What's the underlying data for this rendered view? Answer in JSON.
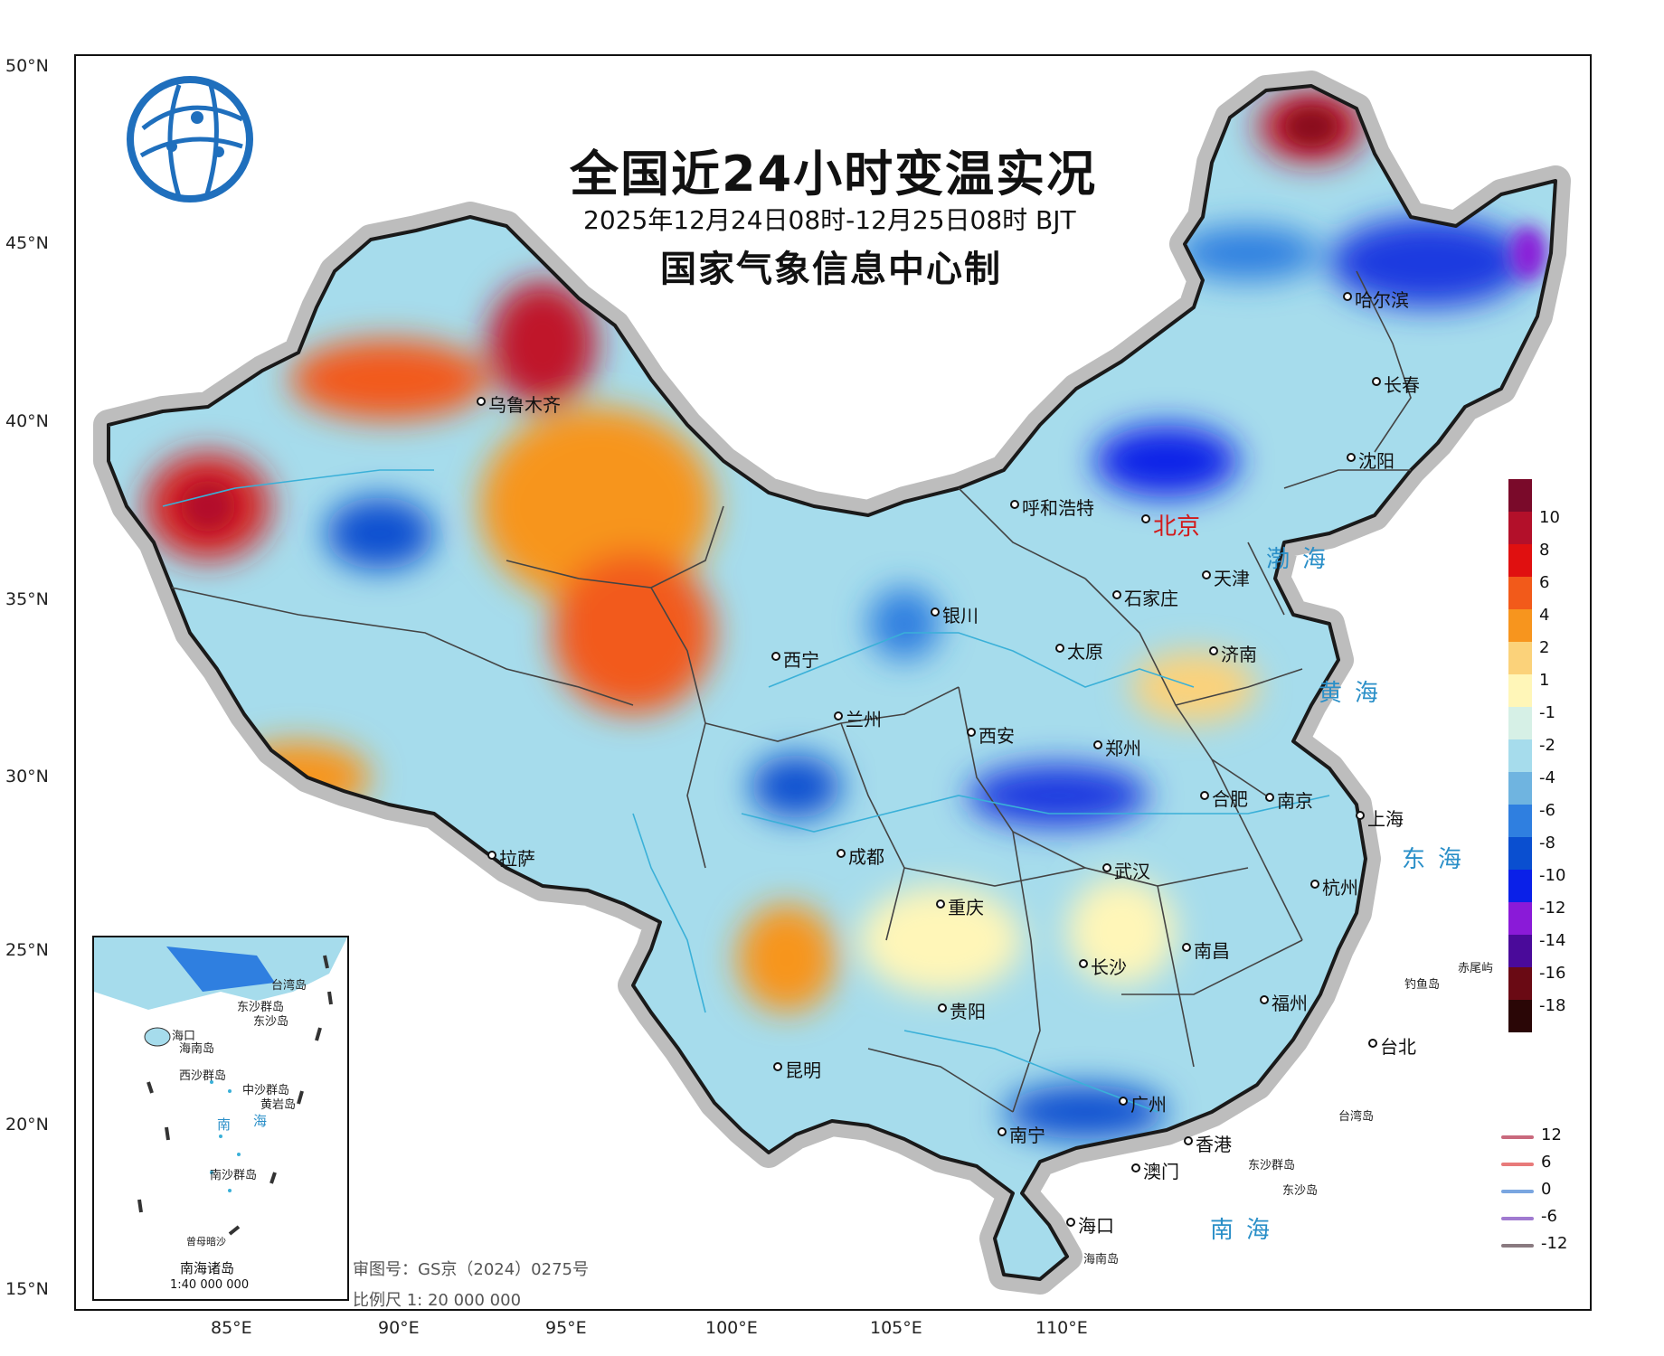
{
  "title": "全国近24小时变温实况",
  "subtitle": "2025年12月24日08时-12月25日08时 BJT",
  "maker": "国家气象信息中心制",
  "review_number": "审图号：GS京（2024）0275号",
  "scale": "比例尺 1: 20 000 000",
  "lat_labels": [
    "50°N",
    "45°N",
    "40°N",
    "35°N",
    "30°N",
    "25°N",
    "20°N",
    "15°N"
  ],
  "lon_labels": [
    "85°E",
    "90°E",
    "95°E",
    "100°E",
    "105°E",
    "110°E"
  ],
  "cities": [
    {
      "name": "乌鲁木齐"
    },
    {
      "name": "哈尔滨"
    },
    {
      "name": "长春"
    },
    {
      "name": "沈阳"
    },
    {
      "name": "呼和浩特"
    },
    {
      "name": "北京"
    },
    {
      "name": "天津"
    },
    {
      "name": "石家庄"
    },
    {
      "name": "银川"
    },
    {
      "name": "太原"
    },
    {
      "name": "济南"
    },
    {
      "name": "西宁"
    },
    {
      "name": "兰州"
    },
    {
      "name": "西安"
    },
    {
      "name": "郑州"
    },
    {
      "name": "合肥"
    },
    {
      "name": "南京"
    },
    {
      "name": "上海"
    },
    {
      "name": "拉萨"
    },
    {
      "name": "成都"
    },
    {
      "name": "武汉"
    },
    {
      "name": "杭州"
    },
    {
      "name": "重庆"
    },
    {
      "name": "南昌"
    },
    {
      "name": "长沙"
    },
    {
      "name": "贵阳"
    },
    {
      "name": "福州"
    },
    {
      "name": "台北"
    },
    {
      "name": "昆明"
    },
    {
      "name": "广州"
    },
    {
      "name": "南宁"
    },
    {
      "name": "香港"
    },
    {
      "name": "澳门"
    },
    {
      "name": "海口"
    }
  ],
  "seas": {
    "bohai": "渤海",
    "huanghai": "黄海",
    "donghai": "东海",
    "nanhai": "南海"
  },
  "islands": {
    "hainan": "海南岛",
    "dongsha": "东沙群岛",
    "dongsha2": "东沙岛",
    "taiwan": "台湾岛",
    "diaoyu": "钓鱼岛",
    "chiwei": "赤尾屿"
  },
  "inset": {
    "title": "南海诸岛",
    "scale": "1:40 000 000",
    "labels": [
      "台湾岛",
      "东沙群岛",
      "东沙岛",
      "海口",
      "海南岛",
      "西沙群岛",
      "中沙群岛",
      "黄岩岛",
      "南",
      "海",
      "南沙群岛",
      "曾母暗沙"
    ]
  },
  "legend": {
    "ticks": [
      "10",
      "8",
      "6",
      "4",
      "2",
      "1",
      "-1",
      "-2",
      "-4",
      "-6",
      "-8",
      "-10",
      "-12",
      "-14",
      "-16",
      "-18"
    ],
    "colors": [
      "#7a0a2a",
      "#b3102a",
      "#e01010",
      "#f25a1a",
      "#f7951e",
      "#fbd27a",
      "#fff6b8",
      "#d6f0e6",
      "#a6dcec",
      "#6fb4e0",
      "#2f7fe0",
      "#0a4fd0",
      "#0a20e8",
      "#8a1ad8",
      "#4a0a9a",
      "#6a0a14",
      "#2a0606"
    ]
  },
  "line_legend": [
    {
      "label": "12",
      "color": "#c9697d"
    },
    {
      "label": "6",
      "color": "#e87a7a"
    },
    {
      "label": "0",
      "color": "#7aa6e0"
    },
    {
      "label": "-6",
      "color": "#a07ad0"
    },
    {
      "label": "-12",
      "color": "#8a7a80"
    }
  ]
}
